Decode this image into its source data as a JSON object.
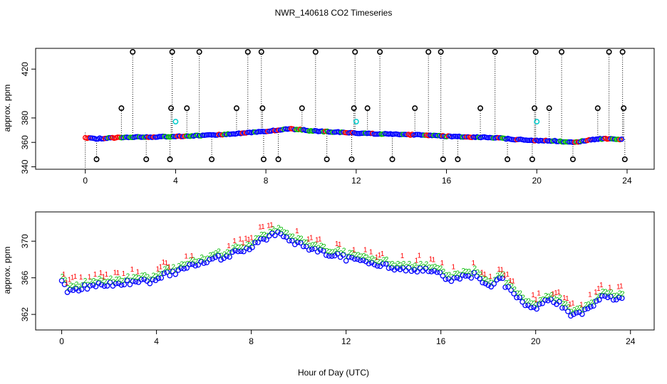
{
  "chart_data": {
    "title": "NWR_140618  CO2 Timeseries",
    "xlabel": "Hour of Day (UTC)",
    "panels": [
      {
        "id": "top",
        "type": "scatter",
        "ylabel": "approx. ppm",
        "xlim": [
          -2.2,
          25.2
        ],
        "ylim": [
          338,
          437
        ],
        "xticks": [
          0,
          4,
          8,
          12,
          16,
          20,
          24
        ],
        "yticks": [
          340,
          360,
          380,
          420
        ],
        "baseline": [
          [
            0,
            363.5
          ],
          [
            0.5,
            363
          ],
          [
            1,
            363.5
          ],
          [
            1.5,
            364
          ],
          [
            2,
            364.2
          ],
          [
            3,
            364.5
          ],
          [
            4,
            364.8
          ],
          [
            5,
            365.5
          ],
          [
            6,
            366.5
          ],
          [
            7,
            367.5
          ],
          [
            8,
            369
          ],
          [
            8.5,
            370
          ],
          [
            9,
            371
          ],
          [
            9.5,
            370.5
          ],
          [
            10,
            369.5
          ],
          [
            11,
            368.5
          ],
          [
            12,
            367.5
          ],
          [
            13,
            367
          ],
          [
            14,
            366.5
          ],
          [
            15,
            366
          ],
          [
            16,
            365
          ],
          [
            17,
            364.5
          ],
          [
            18,
            364
          ],
          [
            19,
            362.5
          ],
          [
            20,
            361.5
          ],
          [
            21,
            361
          ],
          [
            21.5,
            360
          ],
          [
            22,
            361
          ],
          [
            22.5,
            362.5
          ],
          [
            23,
            363
          ],
          [
            23.7,
            362.5
          ]
        ],
        "spikes_high": [
          2.1,
          3.85,
          5.05,
          7.2,
          7.8,
          10.2,
          11.95,
          13.05,
          15.2,
          15.75,
          18.15,
          19.95,
          21.1,
          23.2,
          23.8
        ],
        "spikes_mid": [
          1.6,
          3.8,
          4.5,
          6.7,
          7.85,
          9.6,
          11.9,
          12.5,
          14.6,
          17.5,
          19.9,
          20.55,
          22.7,
          23.85
        ],
        "spikes_low": [
          0.5,
          2.7,
          3.75,
          5.6,
          7.9,
          8.55,
          10.7,
          11.8,
          13.6,
          15.85,
          16.5,
          18.7,
          19.8,
          21.6,
          23.9
        ],
        "cyan_points": [
          [
            4.0,
            377
          ],
          [
            12.0,
            377
          ],
          [
            20.0,
            377
          ]
        ]
      },
      {
        "id": "bottom",
        "type": "scatter",
        "ylabel": "approx. ppm",
        "xlim": [
          -1.1,
          25.0
        ],
        "ylim": [
          360.3,
          373.2
        ],
        "xticks": [
          0,
          4,
          8,
          12,
          16,
          20,
          24
        ],
        "yticks": [
          362,
          366,
          370
        ],
        "series": [
          {
            "name": "1",
            "color": "#ff0000"
          },
          {
            "name": "2",
            "color": "#00cc00"
          },
          {
            "name": "3",
            "color": "#0000ff"
          }
        ],
        "trend": [
          [
            0,
            366.0
          ],
          [
            0.2,
            364.9
          ],
          [
            0.5,
            365.0
          ],
          [
            1,
            365.4
          ],
          [
            2,
            365.7
          ],
          [
            3,
            365.9
          ],
          [
            3.9,
            366.0
          ],
          [
            4.0,
            366.4
          ],
          [
            5,
            367.2
          ],
          [
            6,
            368.0
          ],
          [
            7,
            368.8
          ],
          [
            8,
            369.8
          ],
          [
            8.5,
            370.6
          ],
          [
            9,
            371.2
          ],
          [
            9.5,
            370.8
          ],
          [
            10,
            370.0
          ],
          [
            11,
            369.2
          ],
          [
            12,
            368.5
          ],
          [
            13,
            368.0
          ],
          [
            14,
            367.5
          ],
          [
            15,
            367.2
          ],
          [
            15.9,
            367.0
          ],
          [
            16,
            366.6
          ],
          [
            16.5,
            366.2
          ],
          [
            17,
            366.4
          ],
          [
            17.5,
            366.8
          ],
          [
            18,
            365.4
          ],
          [
            18.5,
            366.4
          ],
          [
            19,
            364.6
          ],
          [
            19.5,
            363.6
          ],
          [
            20,
            363.2
          ],
          [
            20.5,
            363.8
          ],
          [
            21,
            363.6
          ],
          [
            21.5,
            362.2
          ],
          [
            22,
            362.6
          ],
          [
            22.5,
            363.6
          ],
          [
            23,
            364.5
          ],
          [
            23.7,
            363.8
          ]
        ]
      }
    ]
  }
}
